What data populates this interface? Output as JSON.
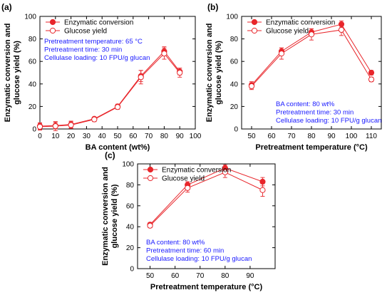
{
  "colors": {
    "series": "#e8262b",
    "annotation": "#1a1aff",
    "axis": "#000000"
  },
  "chart_data": [
    {
      "type": "line",
      "panel_label": "(a)",
      "xlabel": "BA content (wt%)",
      "ylabel": [
        "Enzymatic conversion and",
        "glucose yield (%)"
      ],
      "xlim": [
        0,
        100
      ],
      "ylim": [
        0,
        100
      ],
      "xticks": [
        0,
        10,
        20,
        30,
        40,
        50,
        60,
        70,
        80,
        90,
        100
      ],
      "yticks": [
        0,
        20,
        40,
        60,
        80,
        100
      ],
      "legend_position": "top-left",
      "annotation_position": "top-left",
      "series": [
        {
          "name": "Enzymatic conversion",
          "marker": "filled-circle",
          "x": [
            0,
            10,
            20,
            35,
            50,
            65,
            80,
            90
          ],
          "y": [
            2.5,
            3,
            4,
            9,
            20,
            47,
            69,
            51
          ],
          "err": [
            3,
            3,
            3,
            1.5,
            2,
            5,
            4,
            3
          ]
        },
        {
          "name": "Glucose yield",
          "marker": "open-circle",
          "x": [
            0,
            10,
            20,
            35,
            50,
            65,
            80,
            90
          ],
          "y": [
            2,
            2.5,
            3.5,
            8.5,
            19.5,
            46,
            67,
            50
          ],
          "err": [
            3,
            4,
            3,
            2,
            2,
            6,
            5,
            4
          ]
        }
      ],
      "annotation": [
        "Pretreatment temperature: 65 °C",
        "Pretreatment time: 30 min",
        "Cellulase loading: 10 FPU/g glucan"
      ]
    },
    {
      "type": "line",
      "panel_label": "(b)",
      "xlabel": "Pretreatment temperature (°C)",
      "ylabel": [
        "Enzymatic conversion and",
        "glucose yield (%)"
      ],
      "xlim": [
        45,
        115
      ],
      "ylim": [
        0,
        100
      ],
      "xticks": [
        50,
        60,
        70,
        80,
        90,
        100,
        110
      ],
      "yticks": [
        0,
        20,
        40,
        60,
        80,
        100
      ],
      "legend_position": "top-left",
      "annotation_position": "bottom-right",
      "series": [
        {
          "name": "Enzymatic conversion",
          "marker": "filled-circle",
          "x": [
            50,
            65,
            80,
            95,
            110
          ],
          "y": [
            39,
            69,
            86,
            93,
            50
          ],
          "err": [
            3,
            3,
            3,
            3,
            2
          ]
        },
        {
          "name": "Glucose yield",
          "marker": "open-circle",
          "x": [
            50,
            65,
            80,
            95,
            110
          ],
          "y": [
            38,
            67,
            84,
            88,
            44
          ],
          "err": [
            3,
            5,
            5,
            5,
            2
          ]
        }
      ],
      "annotation": [
        "BA content: 80 wt%",
        "Pretreatment time: 30 min",
        "Cellulase loading: 10 FPU/g glucan"
      ]
    },
    {
      "type": "line",
      "panel_label": "(c)",
      "xlabel": "Pretreatment temperature (°C)",
      "ylabel": [
        "Enzymatic conversion and",
        "glucose yield (%)"
      ],
      "xlim": [
        45,
        100
      ],
      "ylim": [
        0,
        100
      ],
      "xticks": [
        50,
        60,
        70,
        80,
        90
      ],
      "yticks": [
        0,
        20,
        40,
        60,
        80,
        100
      ],
      "legend_position": "top-left",
      "annotation_position": "bottom-left",
      "series": [
        {
          "name": "Enzymatic conversion",
          "marker": "filled-circle",
          "x": [
            50,
            65,
            80,
            95
          ],
          "y": [
            42,
            80,
            96,
            83
          ],
          "err": [
            2,
            3,
            3,
            4
          ]
        },
        {
          "name": "Glucose yield",
          "marker": "open-circle",
          "x": [
            50,
            65,
            80,
            95
          ],
          "y": [
            41,
            77,
            92,
            75
          ],
          "err": [
            2,
            4,
            5,
            6
          ]
        }
      ],
      "annotation": [
        "BA content: 80 wt%",
        "Pretreatment time: 60 min",
        "Cellulase loading: 10 FPU/g glucan"
      ]
    }
  ]
}
